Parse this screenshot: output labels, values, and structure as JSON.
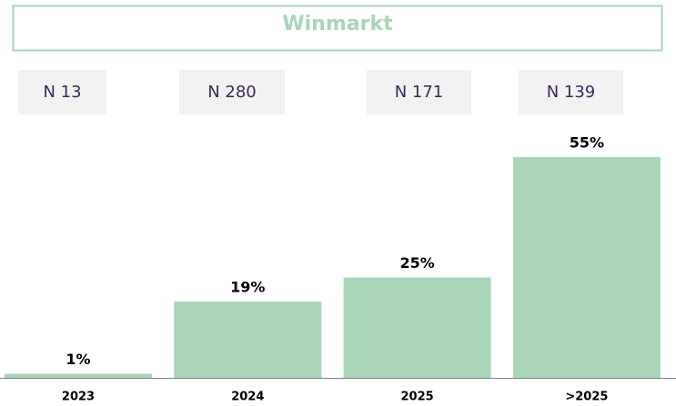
{
  "chart_data": {
    "type": "bar",
    "title": "Winmarkt",
    "annotations": [
      "N 13",
      "N 280",
      "N 171",
      "N 139"
    ],
    "categories": [
      "2023",
      "2024",
      "2025",
      ">2025"
    ],
    "values": [
      1,
      19,
      25,
      55
    ],
    "value_labels": [
      "1%",
      "19%",
      "25%",
      "55%"
    ],
    "color": "#a9d5b9"
  }
}
